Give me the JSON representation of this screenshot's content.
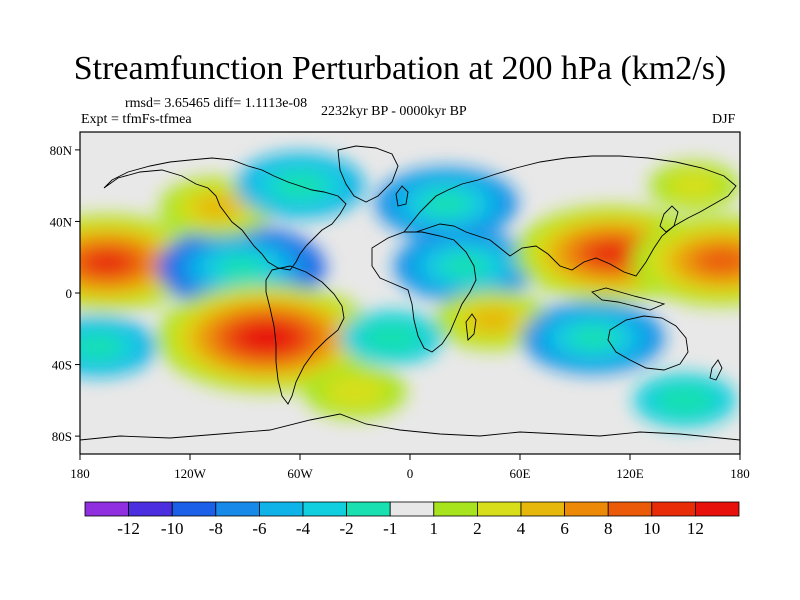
{
  "title": "Streamfunction Perturbation at 200 hPa (km2/s)",
  "stats": "rmsd= 3.65465 diff= 1.1113e-08",
  "expt": "Expt = tfmFs-tfmea",
  "period": "2232kyr BP - 0000kyr BP",
  "season": "DJF",
  "chart_data": {
    "type": "filled-contour map",
    "projection": "cylindrical equidistant",
    "x_ticks": [
      "180",
      "120W",
      "60W",
      "0",
      "60E",
      "120E",
      "180"
    ],
    "y_ticks": [
      "80N",
      "40N",
      "0",
      "40S",
      "80S"
    ],
    "colorbar": {
      "levels": [
        "-12",
        "-10",
        "-8",
        "-6",
        "-4",
        "-2",
        "-1",
        "1",
        "2",
        "4",
        "6",
        "8",
        "10",
        "12"
      ],
      "colors": [
        "#8f2fe0",
        "#4a2ee0",
        "#1b5fe8",
        "#1789e8",
        "#10b3e8",
        "#12cfe0",
        "#18e0b0",
        "#e8e8e8",
        "#a8e41e",
        "#d8df1a",
        "#e6b80c",
        "#ec8a08",
        "#ea5a08",
        "#e82c08",
        "#e8100a"
      ]
    },
    "anomalies": [
      {
        "lon": -165,
        "lat": 17,
        "value": 10
      },
      {
        "lon": -92,
        "lat": 14,
        "value": -8
      },
      {
        "lon": -78,
        "lat": -25,
        "value": 12
      },
      {
        "lon": -105,
        "lat": 48,
        "value": 4
      },
      {
        "lon": -60,
        "lat": 60,
        "value": -5
      },
      {
        "lon": 20,
        "lat": 50,
        "value": -6
      },
      {
        "lon": 30,
        "lat": 15,
        "value": -6
      },
      {
        "lon": 45,
        "lat": -15,
        "value": 4
      },
      {
        "lon": 110,
        "lat": 22,
        "value": 10
      },
      {
        "lon": 170,
        "lat": 18,
        "value": 9
      },
      {
        "lon": 100,
        "lat": -25,
        "value": -6
      },
      {
        "lon": -10,
        "lat": -25,
        "value": -3
      },
      {
        "lon": 155,
        "lat": 60,
        "value": 2
      },
      {
        "lon": -30,
        "lat": -55,
        "value": 3
      },
      {
        "lon": -170,
        "lat": -30,
        "value": -4
      },
      {
        "lon": 150,
        "lat": -60,
        "value": -3
      }
    ]
  }
}
